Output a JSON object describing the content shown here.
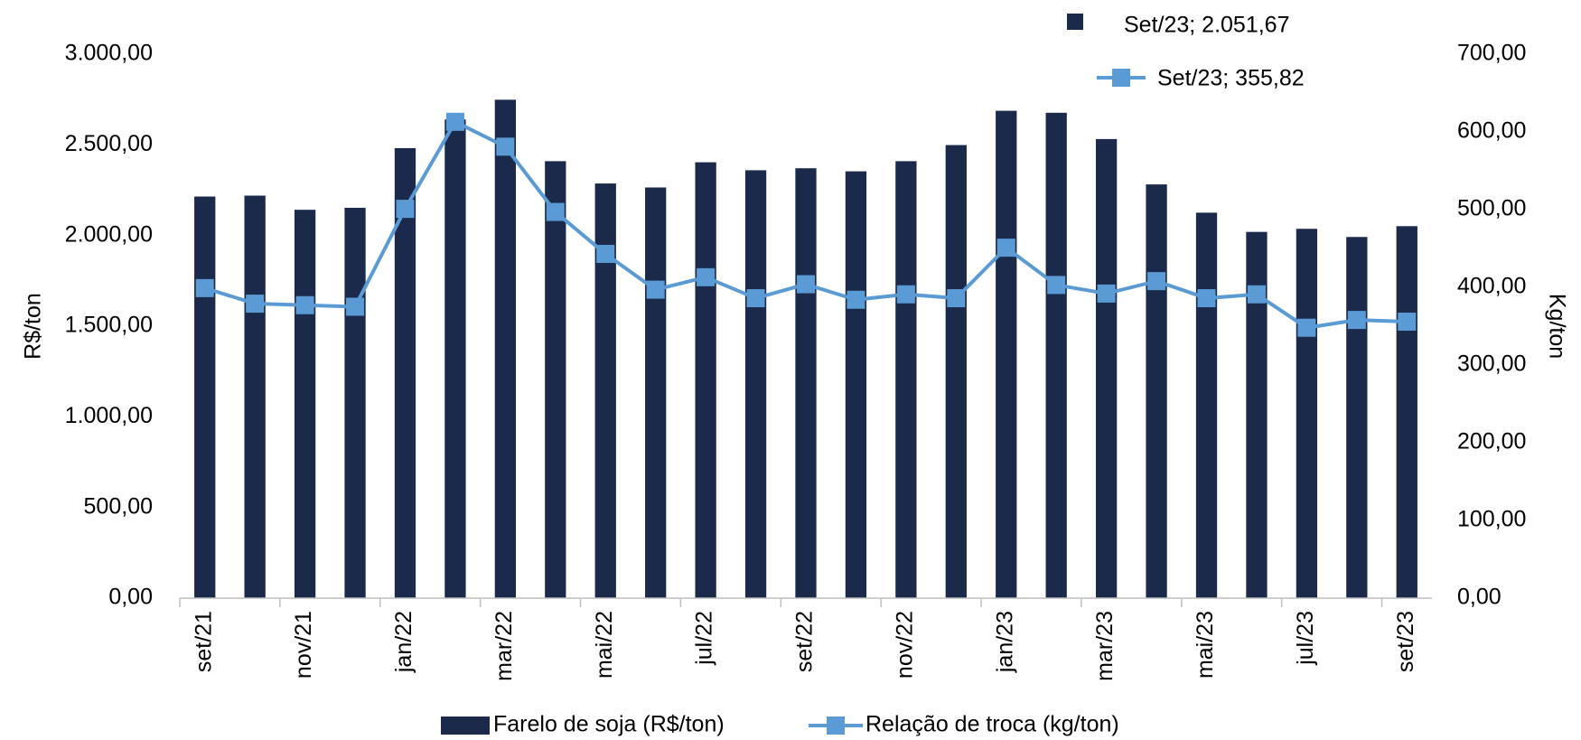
{
  "chart_data": {
    "type": "bar",
    "categories": [
      "set/21",
      null,
      "nov/21",
      null,
      "jan/22",
      null,
      "mar/22",
      null,
      "mai/22",
      null,
      "jul/22",
      null,
      "set/22",
      null,
      "nov/22",
      null,
      "jan/23",
      null,
      "mar/23",
      null,
      "mai/23",
      null,
      "jul/23",
      null,
      "set/23"
    ],
    "series": [
      {
        "name": "Farelo de soja (R$/ton)",
        "type": "bar",
        "color": "#1b2a4a",
        "values": [
          2215,
          2220,
          2142,
          2153,
          2482,
          2640,
          2749,
          2410,
          2287,
          2265,
          2404,
          2360,
          2371,
          2354,
          2410,
          2499,
          2688,
          2677,
          2532,
          2282,
          2126,
          2020,
          2037,
          1992,
          2051.67
        ]
      },
      {
        "name": "Relação de troca (kg/ton)",
        "type": "line",
        "axis": "y2",
        "color": "#5b9bd5",
        "values": [
          399,
          379,
          377,
          375,
          501,
          613,
          581,
          497,
          443,
          397,
          413,
          386,
          404,
          384,
          391,
          386,
          451,
          403,
          392,
          408,
          386,
          391,
          348,
          358,
          355.82
        ]
      }
    ],
    "annotations": [
      "Set/23; 2.051,67",
      "Set/23; 355,82"
    ],
    "ylabel": "R$/ton",
    "y2label": "Kg/ton",
    "ylim": [
      0,
      3000
    ],
    "yticks": [
      {
        "value": 0,
        "label": "0,00"
      },
      {
        "value": 500,
        "label": "500,00"
      },
      {
        "value": 1000,
        "label": "1.000,00"
      },
      {
        "value": 1500,
        "label": "1.500,00"
      },
      {
        "value": 2000,
        "label": "2.000,00"
      },
      {
        "value": 2500,
        "label": "2.500,00"
      },
      {
        "value": 3000,
        "label": "3.000,00"
      }
    ],
    "y2lim": [
      0,
      700
    ],
    "y2ticks": [
      {
        "value": 0,
        "label": "0,00"
      },
      {
        "value": 100,
        "label": "100,00"
      },
      {
        "value": 200,
        "label": "200,00"
      },
      {
        "value": 300,
        "label": "300,00"
      },
      {
        "value": 400,
        "label": "400,00"
      },
      {
        "value": 500,
        "label": "500,00"
      },
      {
        "value": 600,
        "label": "600,00"
      },
      {
        "value": 700,
        "label": "700,00"
      }
    ],
    "grid": false
  }
}
